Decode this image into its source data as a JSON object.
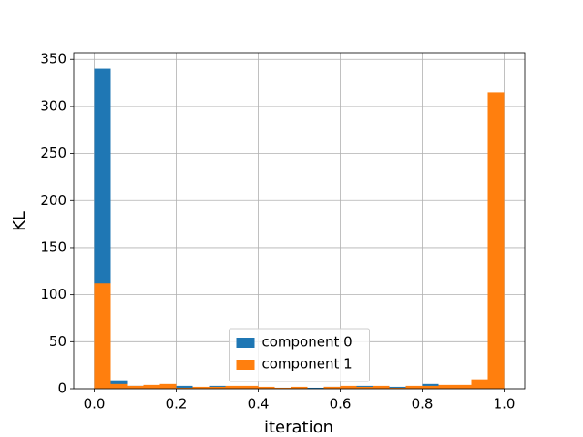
{
  "chart_data": {
    "type": "histogram",
    "xlabel": "iteration",
    "ylabel": "KL",
    "bins": [
      0,
      0.04,
      0.08,
      0.12,
      0.16,
      0.2,
      0.24,
      0.28,
      0.32,
      0.36,
      0.4,
      0.44,
      0.48,
      0.52,
      0.56,
      0.6,
      0.64,
      0.68,
      0.72,
      0.76,
      0.8,
      0.84,
      0.88,
      0.92,
      0.96,
      1
    ],
    "series": [
      {
        "name": "component 0",
        "color": "#1f77b4",
        "values": [
          340,
          9,
          3,
          3,
          2,
          3,
          1,
          3,
          2,
          2,
          1,
          1,
          1,
          1,
          2,
          2,
          3,
          2,
          2,
          2,
          5,
          3,
          3,
          2,
          0
        ]
      },
      {
        "name": "component 1",
        "color": "#ff7f0e",
        "values": [
          112,
          5,
          3,
          4,
          5,
          1,
          2,
          2,
          3,
          3,
          2,
          1,
          2,
          0,
          2,
          3,
          2,
          3,
          1,
          3,
          3,
          4,
          4,
          10,
          315
        ]
      }
    ],
    "xlim": [
      -0.05,
      1.05
    ],
    "xticks": [
      {
        "value": 0,
        "label": "0.0"
      },
      {
        "value": 0.2,
        "label": "0.2"
      },
      {
        "value": 0.4,
        "label": "0.4"
      },
      {
        "value": 0.6,
        "label": "0.6"
      },
      {
        "value": 0.8,
        "label": "0.8"
      },
      {
        "value": 1,
        "label": "1.0"
      }
    ],
    "ylim": [
      0,
      357
    ],
    "yticks": [
      0,
      50,
      100,
      150,
      200,
      250,
      300,
      350
    ],
    "grid": true,
    "legend": "lower center"
  }
}
